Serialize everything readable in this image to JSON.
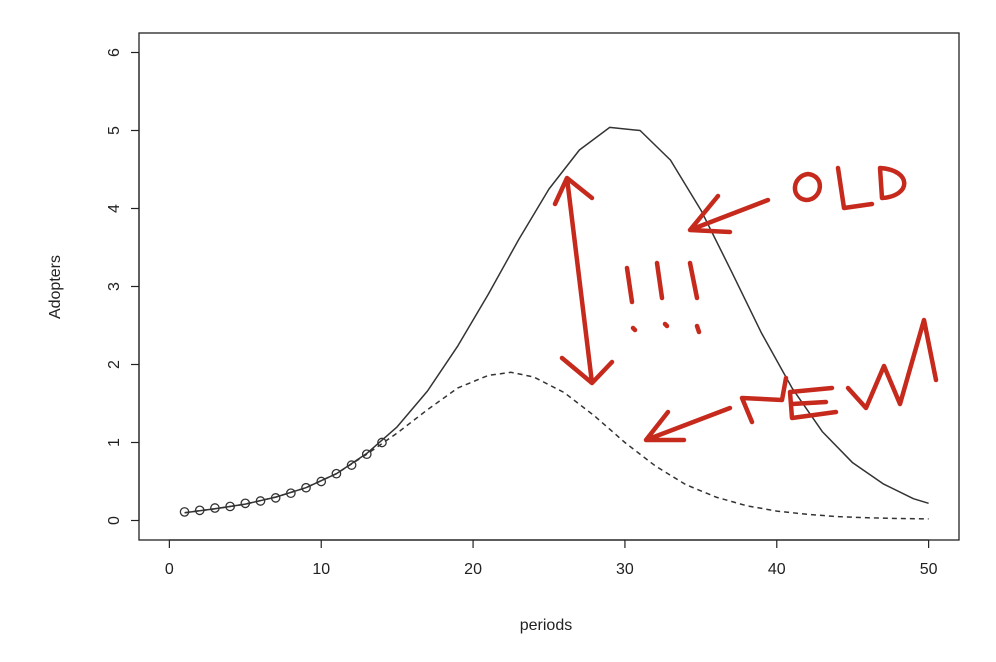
{
  "chart_data": {
    "type": "line",
    "xlabel": "periods",
    "ylabel": "Adopters",
    "xlim": [
      -2,
      52
    ],
    "ylim": [
      -0.25,
      6.25
    ],
    "x_ticks": [
      "0",
      "10",
      "20",
      "30",
      "40",
      "50"
    ],
    "y_ticks": [
      "0",
      "1",
      "2",
      "3",
      "4",
      "5",
      "6"
    ],
    "grid": false,
    "series": [
      {
        "style": "solid",
        "color": "#333333",
        "x": [
          1,
          3,
          5,
          7,
          9,
          11,
          13,
          15,
          17,
          19,
          21,
          23,
          25,
          27,
          29,
          31,
          33,
          35,
          37,
          39,
          41,
          43,
          45,
          47,
          49,
          50
        ],
        "y": [
          0.1,
          0.15,
          0.21,
          0.3,
          0.42,
          0.6,
          0.86,
          1.2,
          1.66,
          2.24,
          2.9,
          3.6,
          4.25,
          4.75,
          5.04,
          5.0,
          4.62,
          3.98,
          3.2,
          2.4,
          1.7,
          1.14,
          0.74,
          0.47,
          0.28,
          0.22
        ]
      },
      {
        "style": "dashed",
        "color": "#333333",
        "x": [
          1,
          3,
          5,
          7,
          9,
          11,
          13,
          15,
          17,
          19,
          21,
          22.5,
          24,
          26,
          28,
          30,
          32,
          34,
          36,
          38,
          40,
          42,
          44,
          46,
          48,
          50
        ],
        "y": [
          0.1,
          0.15,
          0.21,
          0.3,
          0.42,
          0.6,
          0.85,
          1.12,
          1.42,
          1.7,
          1.86,
          1.9,
          1.84,
          1.64,
          1.34,
          1.0,
          0.7,
          0.46,
          0.3,
          0.19,
          0.12,
          0.08,
          0.05,
          0.035,
          0.025,
          0.02
        ]
      },
      {
        "style": "points",
        "color": "#333333",
        "x": [
          1,
          2,
          3,
          4,
          5,
          6,
          7,
          8,
          9,
          10,
          11,
          12,
          13,
          14
        ],
        "y": [
          0.11,
          0.13,
          0.16,
          0.18,
          0.22,
          0.25,
          0.29,
          0.35,
          0.42,
          0.5,
          0.6,
          0.71,
          0.85,
          1.0
        ]
      }
    ],
    "annotations": [
      {
        "text": "OLD",
        "color": "#c62a1d"
      },
      {
        "text": "!!!",
        "color": "#c62a1d"
      },
      {
        "text": "NEW",
        "color": "#c62a1d"
      }
    ]
  }
}
